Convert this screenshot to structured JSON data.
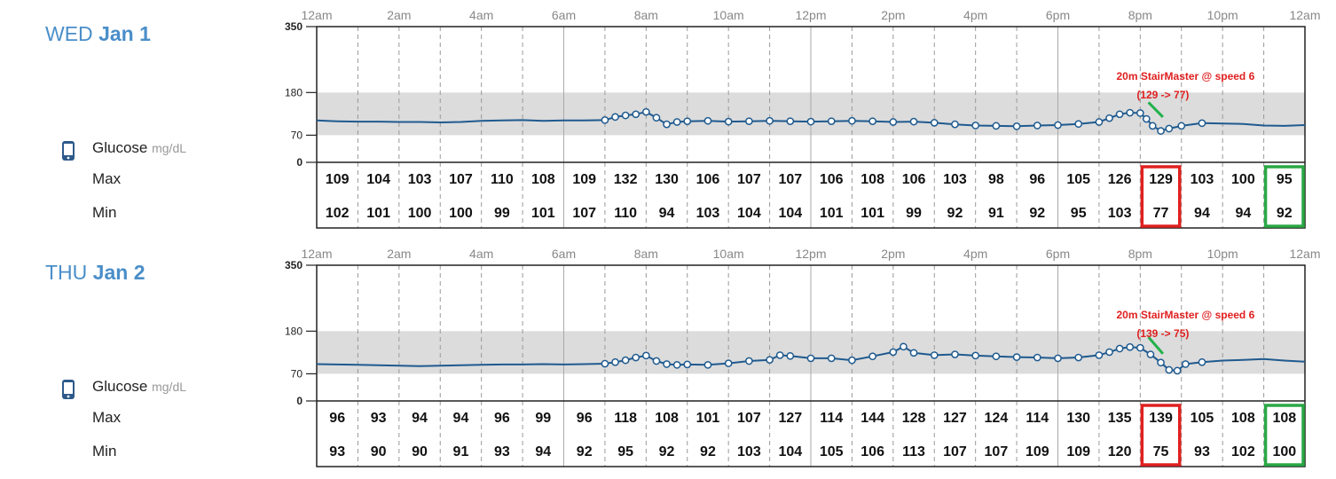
{
  "days": [
    {
      "dow": "WED",
      "date": "Jan 1",
      "legend": {
        "metric": "Glucose",
        "unit": "mg/dL",
        "max_label": "Max",
        "min_label": "Min"
      },
      "time_labels": [
        "12am",
        "2am",
        "4am",
        "6am",
        "8am",
        "10am",
        "12pm",
        "2pm",
        "4pm",
        "6pm",
        "8pm",
        "10pm",
        "12am"
      ],
      "annotation": {
        "line1": "20m StairMaster @ speed 6",
        "line2": "(129 -> 77)"
      },
      "max_values": [
        109,
        104,
        103,
        107,
        110,
        108,
        109,
        132,
        130,
        106,
        107,
        107,
        106,
        108,
        106,
        103,
        98,
        96,
        105,
        126,
        129,
        103,
        100,
        95
      ],
      "min_values": [
        102,
        101,
        100,
        100,
        99,
        101,
        107,
        110,
        94,
        103,
        104,
        104,
        101,
        101,
        99,
        92,
        91,
        92,
        95,
        103,
        77,
        94,
        94,
        92
      ],
      "highlights": [
        {
          "hour": 20,
          "color": "#e02020"
        },
        {
          "hour": 23,
          "color": "#2aa845"
        }
      ]
    },
    {
      "dow": "THU",
      "date": "Jan 2",
      "legend": {
        "metric": "Glucose",
        "unit": "mg/dL",
        "max_label": "Max",
        "min_label": "Min"
      },
      "time_labels": [
        "12am",
        "2am",
        "4am",
        "6am",
        "8am",
        "10am",
        "12pm",
        "2pm",
        "4pm",
        "6pm",
        "8pm",
        "10pm",
        "12am"
      ],
      "annotation": {
        "line1": "20m StairMaster @ speed 6",
        "line2": "(139 -> 75)"
      },
      "max_values": [
        96,
        93,
        94,
        94,
        96,
        99,
        96,
        118,
        108,
        101,
        107,
        127,
        114,
        144,
        128,
        127,
        124,
        114,
        130,
        135,
        139,
        105,
        108,
        108
      ],
      "min_values": [
        93,
        90,
        90,
        91,
        93,
        94,
        92,
        95,
        92,
        92,
        103,
        104,
        105,
        106,
        113,
        107,
        107,
        109,
        109,
        120,
        75,
        93,
        102,
        100
      ],
      "highlights": [
        {
          "hour": 20,
          "color": "#e02020"
        },
        {
          "hour": 23,
          "color": "#2aa845"
        }
      ]
    }
  ],
  "chart_data": [
    {
      "type": "line",
      "title": "WED Jan 1",
      "ylabel": "Glucose mg/dL",
      "y_ticks": [
        0,
        70,
        180,
        350
      ],
      "ylim": [
        0,
        350
      ],
      "target_range": [
        70,
        180
      ],
      "x_unit": "hour of day",
      "xlim": [
        0,
        24
      ],
      "series": [
        {
          "x": [
            0,
            0.5,
            1,
            1.5,
            2,
            2.5,
            3,
            3.5,
            4,
            4.5,
            5,
            5.5,
            6,
            6.5,
            7,
            7.25,
            7.5,
            7.75,
            8,
            8.25,
            8.5,
            8.75,
            9,
            9.5,
            10,
            10.5,
            11,
            11.5,
            12,
            12.5,
            13,
            13.5,
            14,
            14.5,
            15,
            15.5,
            16,
            16.5,
            17,
            17.5,
            18,
            18.5,
            19,
            19.25,
            19.5,
            19.75,
            20,
            20.15,
            20.3,
            20.5,
            20.7,
            21,
            21.5,
            22,
            22.5,
            23,
            23.5,
            24
          ],
          "y": [
            108,
            106,
            105,
            105,
            104,
            104,
            103,
            104,
            107,
            108,
            109,
            107,
            108,
            108,
            109,
            117,
            121,
            124,
            130,
            115,
            98,
            104,
            106,
            107,
            105,
            106,
            107,
            106,
            105,
            106,
            107,
            106,
            104,
            105,
            102,
            98,
            95,
            94,
            93,
            95,
            96,
            99,
            104,
            114,
            124,
            128,
            127,
            112,
            94,
            81,
            87,
            94,
            101,
            100,
            99,
            95,
            94,
            96
          ]
        }
      ]
    },
    {
      "type": "line",
      "title": "THU Jan 2",
      "ylabel": "Glucose mg/dL",
      "y_ticks": [
        0,
        70,
        180,
        350
      ],
      "ylim": [
        0,
        350
      ],
      "target_range": [
        70,
        180
      ],
      "x_unit": "hour of day",
      "xlim": [
        0,
        24
      ],
      "series": [
        {
          "x": [
            0,
            0.5,
            1,
            1.5,
            2,
            2.5,
            3,
            3.5,
            4,
            4.5,
            5,
            5.5,
            6,
            6.5,
            7,
            7.25,
            7.5,
            7.75,
            8,
            8.25,
            8.5,
            8.75,
            9,
            9.5,
            10,
            10.5,
            11,
            11.25,
            11.5,
            12,
            12.5,
            13,
            13.5,
            14,
            14.25,
            14.5,
            15,
            15.5,
            16,
            16.5,
            17,
            17.5,
            18,
            18.5,
            19,
            19.25,
            19.5,
            19.75,
            20,
            20.25,
            20.5,
            20.7,
            20.9,
            21.1,
            21.5,
            22,
            22.5,
            23,
            23.5,
            24
          ],
          "y": [
            95,
            94,
            93,
            92,
            91,
            90,
            91,
            92,
            93,
            94,
            94,
            95,
            94,
            95,
            96,
            100,
            105,
            112,
            117,
            103,
            95,
            93,
            94,
            93,
            97,
            103,
            106,
            118,
            116,
            110,
            110,
            105,
            115,
            126,
            140,
            124,
            118,
            120,
            117,
            115,
            113,
            112,
            110,
            112,
            118,
            126,
            135,
            139,
            137,
            120,
            99,
            80,
            78,
            95,
            100,
            104,
            106,
            108,
            104,
            101
          ]
        }
      ]
    }
  ]
}
